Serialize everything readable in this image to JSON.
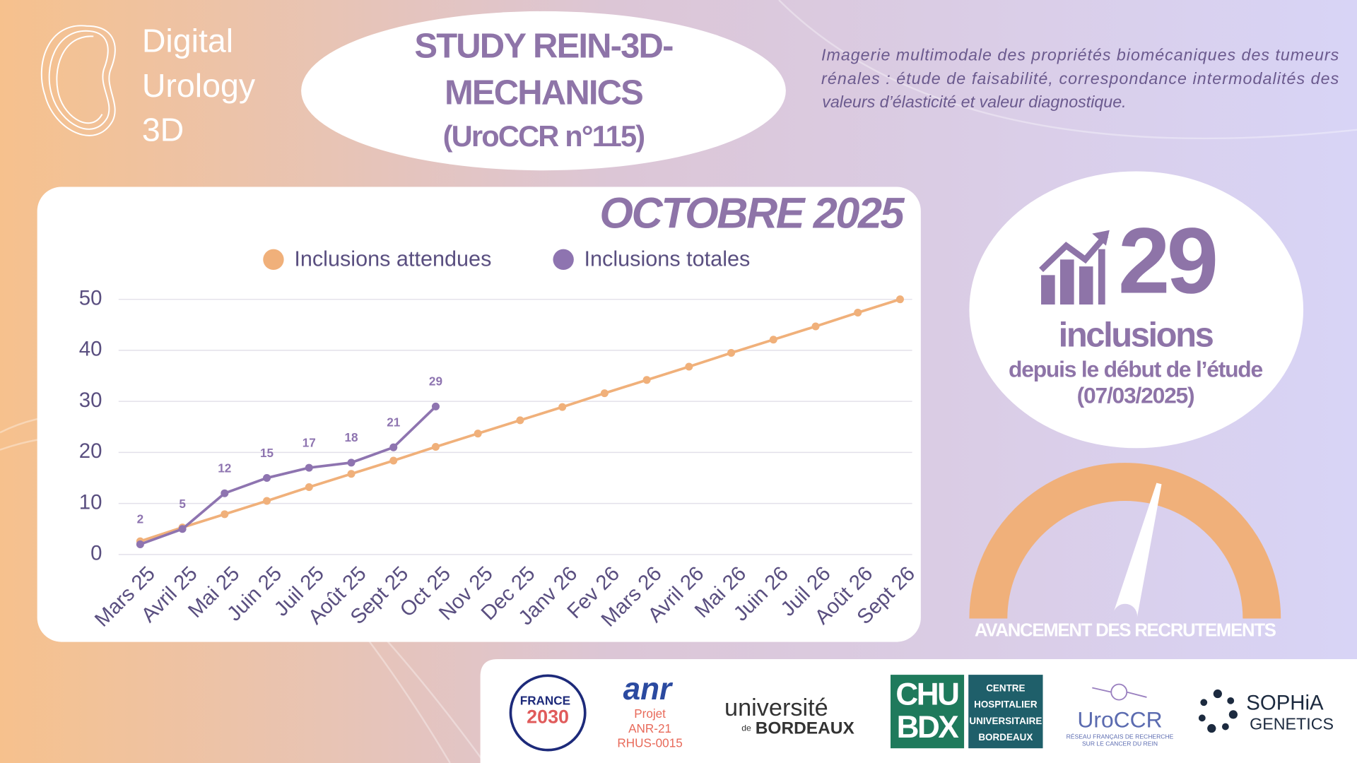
{
  "brand": {
    "lines": [
      "Digital",
      "Urology",
      "3D"
    ]
  },
  "header": {
    "title_lines": [
      "STUDY REIN-3D-",
      "MECHANICS",
      "(UroCCR n°115)"
    ]
  },
  "description": {
    "lines": [
      "Imagerie multimodale des propriétés biomécaniques des tumeurs",
      "rénales : étude de faisabilité, correspondance intermodalités des",
      "valeurs d’élasticité et valeur diagnostique."
    ]
  },
  "chart_data": {
    "type": "line",
    "title": "OCTOBRE 2025",
    "categories": [
      "Mars 25",
      "Avril 25",
      "Mai 25",
      "Juin 25",
      "Juil 25",
      "Août 25",
      "Sept 25",
      "Oct 25",
      "Nov 25",
      "Dec 25",
      "Janv 26",
      "Fev 26",
      "Mars 26",
      "Avril 26",
      "Mai 26",
      "Juin 26",
      "Juil 26",
      "Août 26",
      "Sept 26"
    ],
    "series": [
      {
        "name": "Inclusions attendues",
        "color": "#f0b07a",
        "values": [
          2.6,
          5.3,
          7.9,
          10.5,
          13.2,
          15.8,
          18.4,
          21.1,
          23.7,
          26.3,
          28.9,
          31.6,
          34.2,
          36.8,
          39.5,
          42.1,
          44.7,
          47.4,
          50
        ],
        "data_labels": false
      },
      {
        "name": "Inclusions totales",
        "color": "#8e74b0",
        "values": [
          2,
          5,
          12,
          15,
          17,
          18,
          21,
          29,
          null,
          null,
          null,
          null,
          null,
          null,
          null,
          null,
          null,
          null,
          null
        ],
        "data_labels": true
      }
    ],
    "ylim": [
      0,
      50
    ],
    "yticks": [
      0,
      10,
      20,
      30,
      40,
      50
    ],
    "grid": true,
    "legend": "top"
  },
  "summary": {
    "count": 29,
    "unit": "inclusions",
    "caption": "depuis le début de l’étude",
    "date": "(07/03/2025)"
  },
  "gauge": {
    "label": "AVANCEMENT DES RECRUTEMENTS"
  },
  "logos": {
    "france": [
      "FRANCE",
      "2030"
    ],
    "anr": [
      "anr",
      "Projet",
      "ANR-21",
      "RHUS-0015"
    ],
    "bordeaux": [
      "université",
      "de",
      "BORDEAUX"
    ],
    "chu": [
      "CHU",
      "BDX",
      "CENTRE",
      "HOSPITALIER",
      "UNIVERSITAIRE",
      "BORDEAUX"
    ],
    "uroccr": [
      "UroCCR",
      "RÉSEAU FRANÇAIS DE RECHERCHE",
      "SUR LE CANCER DU REIN"
    ],
    "sophia": [
      "SOPHiA",
      "GENETICS"
    ]
  }
}
